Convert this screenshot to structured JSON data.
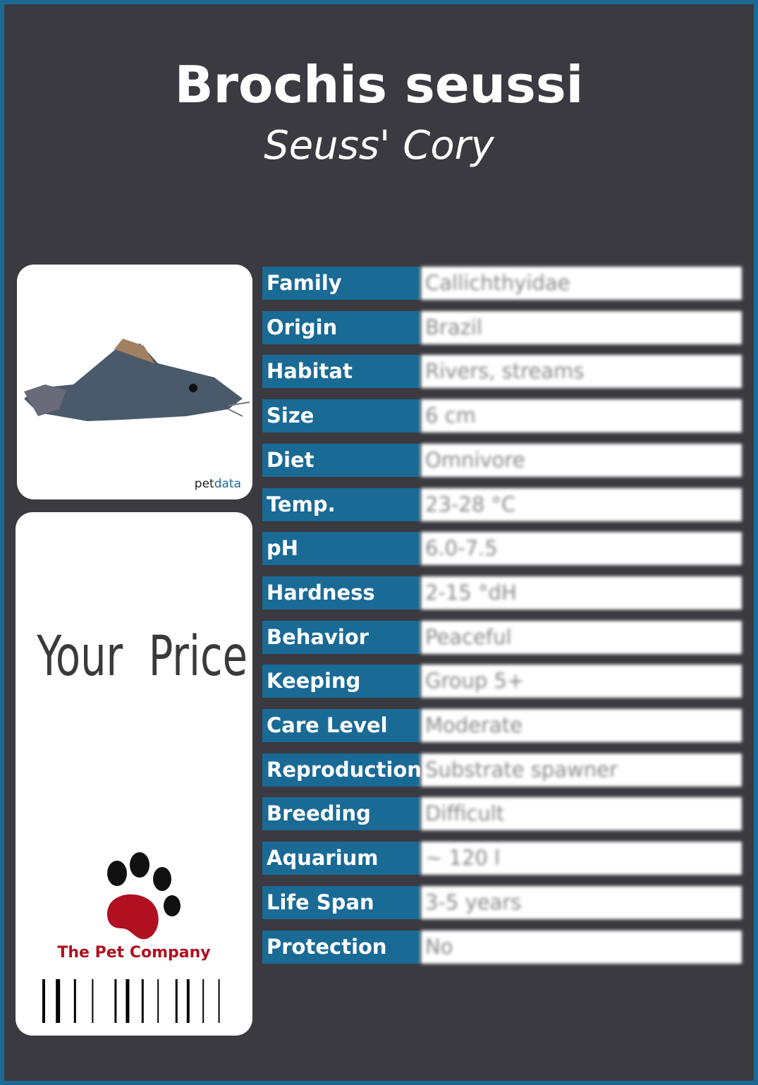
{
  "header": {
    "title": "Brochis seussi",
    "subtitle": "Seuss' Cory"
  },
  "image": {
    "credit_a": "pet",
    "credit_b": "data"
  },
  "price": {
    "label": "Your  Price"
  },
  "logo": {
    "name": "The Pet Company"
  },
  "table": {
    "rows": [
      [
        "Family",
        "Callichthyidae"
      ],
      [
        "Origin",
        "Brazil"
      ],
      [
        "Habitat",
        "Rivers, streams"
      ],
      [
        "Size",
        "6 cm"
      ],
      [
        "Diet",
        "Omnivore"
      ],
      [
        "Temp.",
        "23-28 °C"
      ],
      [
        "pH",
        "6.0-7.5"
      ],
      [
        "Hardness",
        "2-15 °dH"
      ],
      [
        "Behavior",
        "Peaceful"
      ],
      [
        "Keeping",
        "Group 5+"
      ],
      [
        "Care Level",
        "Moderate"
      ],
      [
        "Reproduction",
        "Substrate spawner"
      ],
      [
        "Breeding",
        "Difficult"
      ],
      [
        "Aquarium",
        "~ 120 l"
      ],
      [
        "Life Span",
        "3-5 years"
      ],
      [
        "Protection",
        "No"
      ]
    ]
  }
}
